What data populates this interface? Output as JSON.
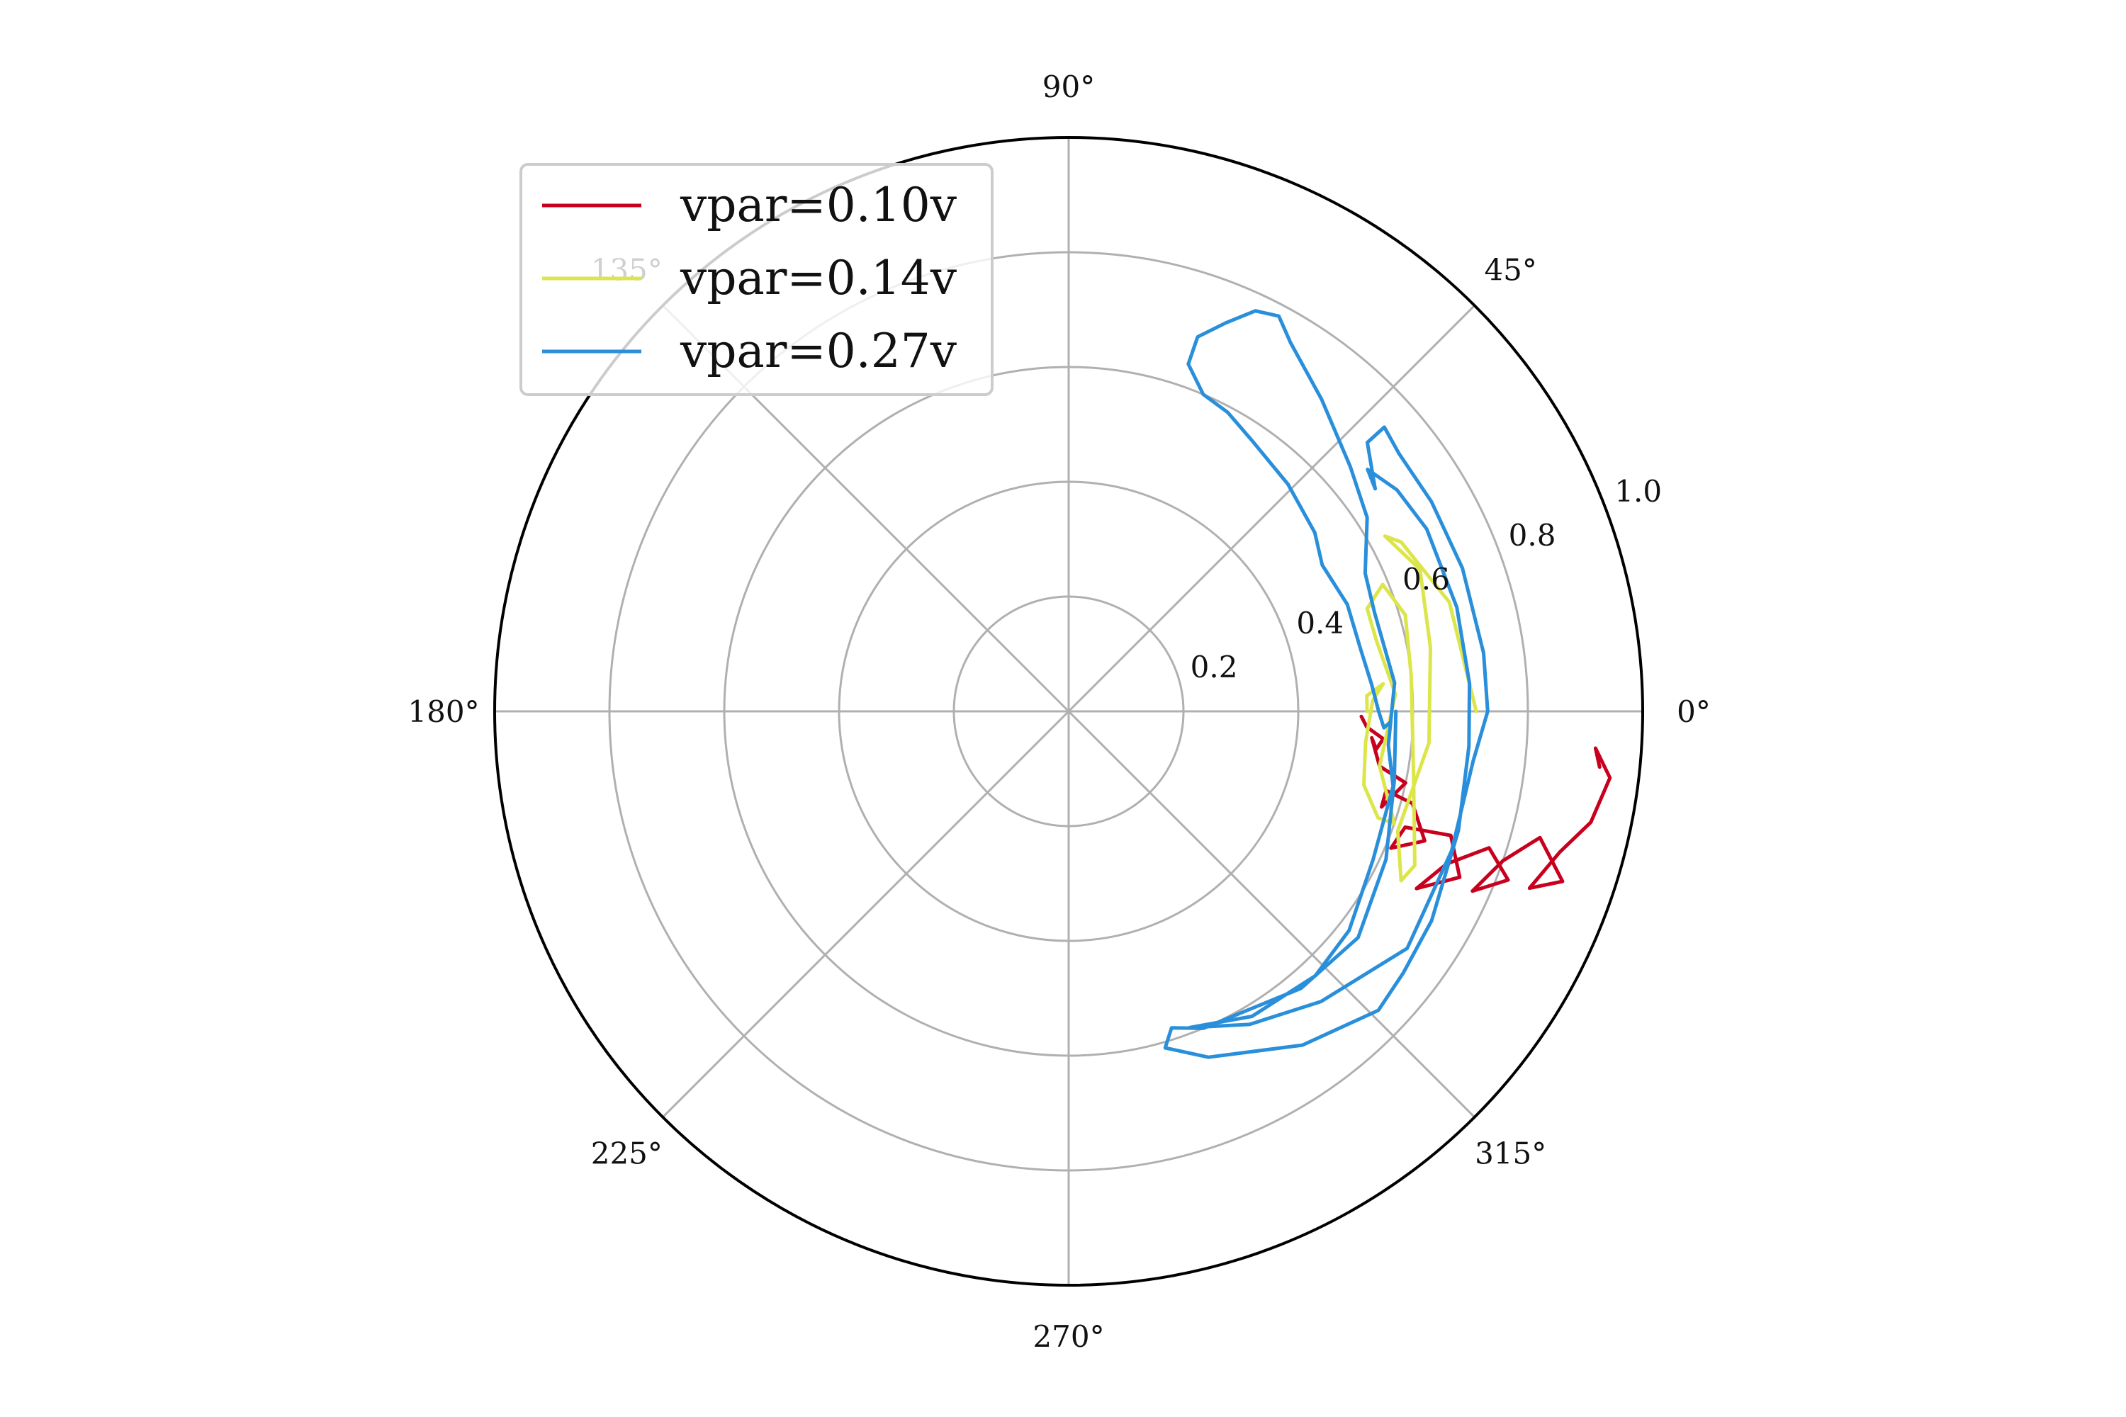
{
  "chart_data": {
    "type": "polar-line",
    "theta_unit": "degrees",
    "rlim": [
      0,
      1.0
    ],
    "r_ticks": [
      "0.2",
      "0.4",
      "0.6",
      "0.8",
      "1.0"
    ],
    "theta_ticks": [
      "0°",
      "45°",
      "90°",
      "135°",
      "180°",
      "225°",
      "270°",
      "315°"
    ],
    "grid": true,
    "legend": {
      "placement": "upper-left"
    },
    "series": [
      {
        "name": "vpar=0.10v",
        "color": "#c8001e",
        "points": [
          [
            0.51,
            -1
          ],
          [
            0.52,
            -3
          ],
          [
            0.55,
            -5
          ],
          [
            0.54,
            -7
          ],
          [
            0.53,
            -5
          ],
          [
            0.55,
            -10
          ],
          [
            0.6,
            -12
          ],
          [
            0.57,
            -17
          ],
          [
            0.57,
            -14
          ],
          [
            0.62,
            -15
          ],
          [
            0.66,
            -20
          ],
          [
            0.61,
            -23
          ],
          [
            0.62,
            -19
          ],
          [
            0.7,
            -18
          ],
          [
            0.74,
            -23
          ],
          [
            0.68,
            -27
          ],
          [
            0.71,
            -22
          ],
          [
            0.77,
            -18
          ],
          [
            0.82,
            -21
          ],
          [
            0.77,
            -24
          ],
          [
            0.8,
            -19
          ],
          [
            0.85,
            -15
          ],
          [
            0.91,
            -19
          ],
          [
            0.86,
            -21
          ],
          [
            0.89,
            -16
          ],
          [
            0.93,
            -12
          ],
          [
            0.95,
            -7
          ],
          [
            0.92,
            -4
          ],
          [
            0.93,
            -6
          ]
        ]
      },
      {
        "name": "vpar=0.14v",
        "color": "#dce64b",
        "points": [
          [
            0.52,
            0
          ],
          [
            0.52,
            3
          ],
          [
            0.55,
            5
          ],
          [
            0.53,
            2
          ],
          [
            0.52,
            -6
          ],
          [
            0.53,
            -14
          ],
          [
            0.57,
            -19
          ],
          [
            0.6,
            -19
          ],
          [
            0.55,
            -10
          ],
          [
            0.57,
            3
          ],
          [
            0.55,
            13
          ],
          [
            0.55,
            19
          ],
          [
            0.59,
            22
          ],
          [
            0.61,
            16
          ],
          [
            0.6,
            6
          ],
          [
            0.61,
            -10
          ],
          [
            0.66,
            -24
          ],
          [
            0.65,
            -27
          ],
          [
            0.61,
            -20
          ],
          [
            0.63,
            -5
          ],
          [
            0.64,
            10
          ],
          [
            0.66,
            22
          ],
          [
            0.63,
            29
          ],
          [
            0.65,
            27
          ],
          [
            0.69,
            16
          ],
          [
            0.71,
            0
          ]
        ]
      },
      {
        "name": "vpar=0.27v",
        "color": "#2a8fdb",
        "points": [
          [
            0.57,
            0
          ],
          [
            0.58,
            -12
          ],
          [
            0.61,
            -25
          ],
          [
            0.64,
            -38
          ],
          [
            0.63,
            -50
          ],
          [
            0.6,
            -67
          ],
          [
            0.58,
            -72
          ],
          [
            0.61,
            -74
          ],
          [
            0.65,
            -68
          ],
          [
            0.71,
            -55
          ],
          [
            0.75,
            -44
          ],
          [
            0.74,
            -38
          ],
          [
            0.73,
            -30
          ],
          [
            0.71,
            -17
          ],
          [
            0.7,
            -5
          ],
          [
            0.7,
            4
          ],
          [
            0.7,
            15
          ],
          [
            0.7,
            27
          ],
          [
            0.69,
            34
          ],
          [
            0.67,
            39
          ],
          [
            0.66,
            36
          ],
          [
            0.7,
            42
          ],
          [
            0.74,
            42
          ],
          [
            0.73,
            38
          ],
          [
            0.73,
            30
          ],
          [
            0.73,
            20
          ],
          [
            0.73,
            8
          ],
          [
            0.73,
            0
          ],
          [
            0.71,
            -7
          ],
          [
            0.71,
            -20
          ],
          [
            0.72,
            -35
          ],
          [
            0.67,
            -49
          ],
          [
            0.63,
            -60
          ],
          [
            0.59,
            -69
          ],
          [
            0.62,
            -59
          ],
          [
            0.63,
            -47
          ],
          [
            0.62,
            -38
          ],
          [
            0.59,
            -26
          ],
          [
            0.58,
            -13
          ],
          [
            0.56,
            -6
          ],
          [
            0.57,
            5
          ],
          [
            0.56,
            18
          ],
          [
            0.57,
            25
          ],
          [
            0.62,
            33
          ],
          [
            0.65,
            41
          ],
          [
            0.7,
            51
          ],
          [
            0.75,
            59
          ],
          [
            0.78,
            62
          ],
          [
            0.77,
            65
          ],
          [
            0.73,
            68
          ],
          [
            0.69,
            71
          ],
          [
            0.64,
            71
          ],
          [
            0.6,
            67
          ],
          [
            0.59,
            62
          ],
          [
            0.57,
            56
          ],
          [
            0.55,
            46
          ],
          [
            0.53,
            36
          ],
          [
            0.51,
            30
          ],
          [
            0.52,
            21
          ],
          [
            0.52,
            12
          ],
          [
            0.53,
            5
          ],
          [
            0.54,
            0
          ],
          [
            0.55,
            -3
          ],
          [
            0.56,
            -2
          ]
        ]
      }
    ]
  }
}
